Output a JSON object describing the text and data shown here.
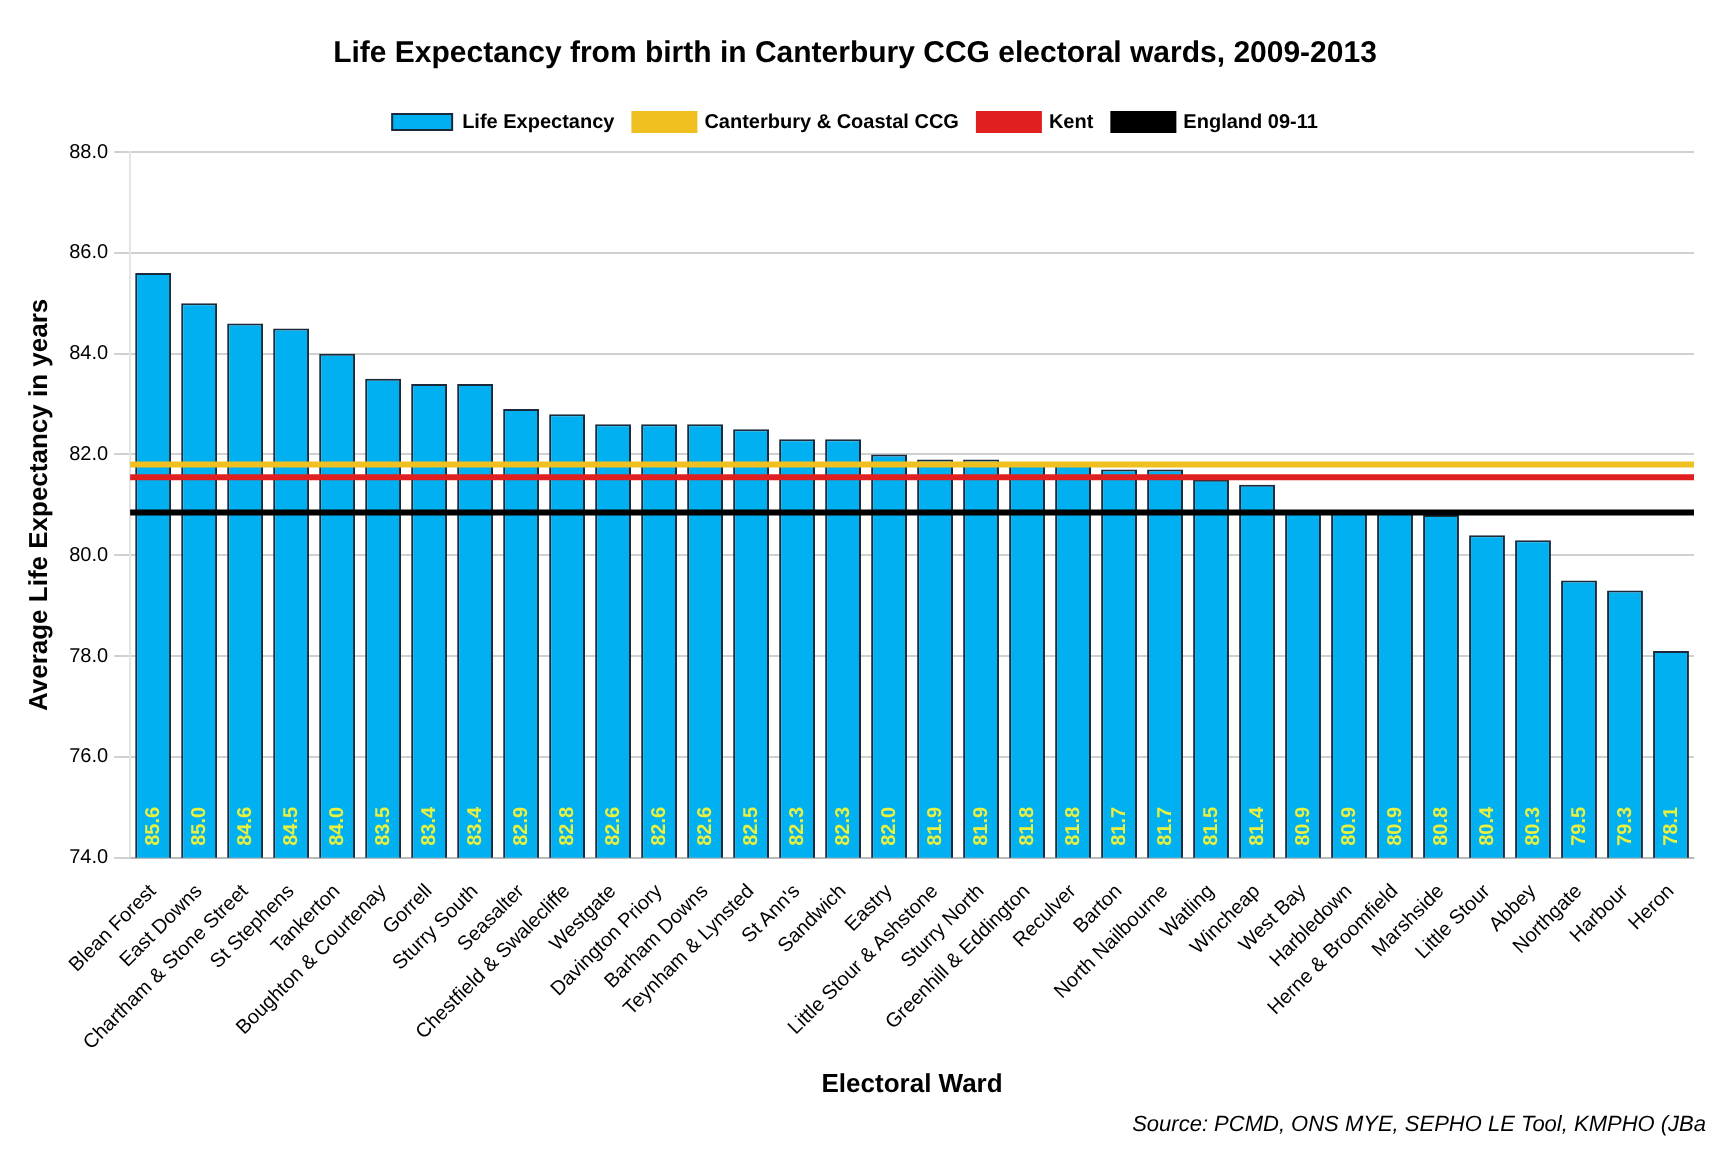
{
  "chart_data": {
    "type": "bar",
    "title": "Life Expectancy from birth in Canterbury CCG electoral wards, 2009-2013",
    "xlabel": "Electoral Ward",
    "ylabel": "Average Life Expectancy in years",
    "categories": [
      "Blean Forest",
      "East Downs",
      "Chartham & Stone Street",
      "St Stephens",
      "Tankerton",
      "Boughton & Courtenay",
      "Gorrell",
      "Sturry South",
      "Seasalter",
      "Chestfield & Swalecliffe",
      "Westgate",
      "Davington Priory",
      "Barham Downs",
      "Teynham & Lynsted",
      "St Ann's",
      "Sandwich",
      "Eastry",
      "Little Stour & Ashstone",
      "Sturry North",
      "Greenhill & Eddington",
      "Reculver",
      "Barton",
      "North Nailbourne",
      "Watling",
      "Wincheap",
      "West Bay",
      "Harbledown",
      "Herne & Broomfield",
      "Marshside",
      "Little Stour",
      "Abbey",
      "Northgate",
      "Harbour",
      "Heron"
    ],
    "series": [
      {
        "name": "Life Expectancy",
        "color": "#00b0f0",
        "values": [
          85.6,
          85.0,
          84.6,
          84.5,
          84.0,
          83.5,
          83.4,
          83.4,
          82.9,
          82.8,
          82.6,
          82.6,
          82.6,
          82.5,
          82.3,
          82.3,
          82.0,
          81.9,
          81.9,
          81.8,
          81.8,
          81.7,
          81.7,
          81.5,
          81.4,
          80.9,
          80.9,
          80.9,
          80.8,
          80.4,
          80.3,
          79.5,
          79.3,
          78.1
        ],
        "value_labels": [
          "85.6",
          "85.0",
          "84.6",
          "84.5",
          "84.0",
          "83.5",
          "83.4",
          "83.4",
          "82.9",
          "82.8",
          "82.6",
          "82.6",
          "82.6",
          "82.5",
          "82.3",
          "82.3",
          "82.0",
          "81.9",
          "81.9",
          "81.8",
          "81.8",
          "81.7",
          "81.7",
          "81.5",
          "81.4",
          "80.9",
          "80.9",
          "80.9",
          "80.8",
          "80.4",
          "80.3",
          "79.5",
          "79.3",
          "78.1"
        ]
      }
    ],
    "ref_lines": [
      {
        "axis": "y",
        "value": 81.8,
        "label": "Canterbury & Coastal CCG",
        "color": "#f0c020"
      },
      {
        "axis": "y",
        "value": 81.55,
        "label": "Kent",
        "color": "#e02020"
      },
      {
        "axis": "y",
        "value": 80.85,
        "label": "England 09-11",
        "color": "#000000"
      }
    ],
    "ylim": [
      74,
      88
    ],
    "yticks": [
      {
        "value": 74,
        "label": "74.0"
      },
      {
        "value": 76,
        "label": "76.0"
      },
      {
        "value": 78,
        "label": "78.0"
      },
      {
        "value": 80,
        "label": "80.0"
      },
      {
        "value": 82,
        "label": "82.0"
      },
      {
        "value": 84,
        "label": "84.0"
      },
      {
        "value": 86,
        "label": "86.0"
      },
      {
        "value": 88,
        "label": "88.0"
      }
    ],
    "grid": "y",
    "legend": "top",
    "annotations": [
      "Source: PCMD, ONS MYE, SEPHO LE Tool, KMPHO (JBa"
    ]
  }
}
